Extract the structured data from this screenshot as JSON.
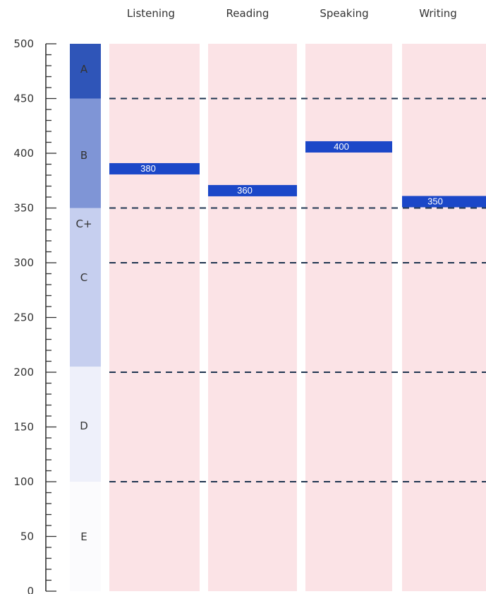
{
  "chart_data": {
    "type": "bar",
    "categories": [
      "Listening",
      "Reading",
      "Speaking",
      "Writing"
    ],
    "values": [
      380,
      360,
      400,
      350
    ],
    "value_labels": [
      "380",
      "360",
      "400",
      "350"
    ],
    "ylim": [
      0,
      500
    ],
    "y_ticks": [
      0,
      50,
      100,
      150,
      200,
      250,
      300,
      350,
      400,
      450,
      500
    ],
    "y_tick_labels": [
      "0",
      "50",
      "100",
      "150",
      "200",
      "250",
      "300",
      "350",
      "400",
      "450",
      "500"
    ],
    "grade_bands": [
      {
        "label": "A",
        "from": 450,
        "to": 500,
        "color": "#2f55b8"
      },
      {
        "label": "B",
        "from": 350,
        "to": 450,
        "color": "#7f95d6"
      },
      {
        "label": "C+",
        "from": 300,
        "to": 350,
        "color": "#c6cfef"
      },
      {
        "label": "C",
        "from": 205,
        "to": 300,
        "color": "#c6cfef"
      },
      {
        "label": "D",
        "from": 100,
        "to": 205,
        "color": "#eef0fa"
      },
      {
        "label": "E",
        "from": 0,
        "to": 100,
        "color": "#fbfbfd"
      }
    ],
    "reference_lines": [
      100,
      200,
      300,
      350,
      450
    ],
    "bar_color": "#1b47c8",
    "column_color": "#fbe3e6",
    "grid": false,
    "legend": "none"
  }
}
